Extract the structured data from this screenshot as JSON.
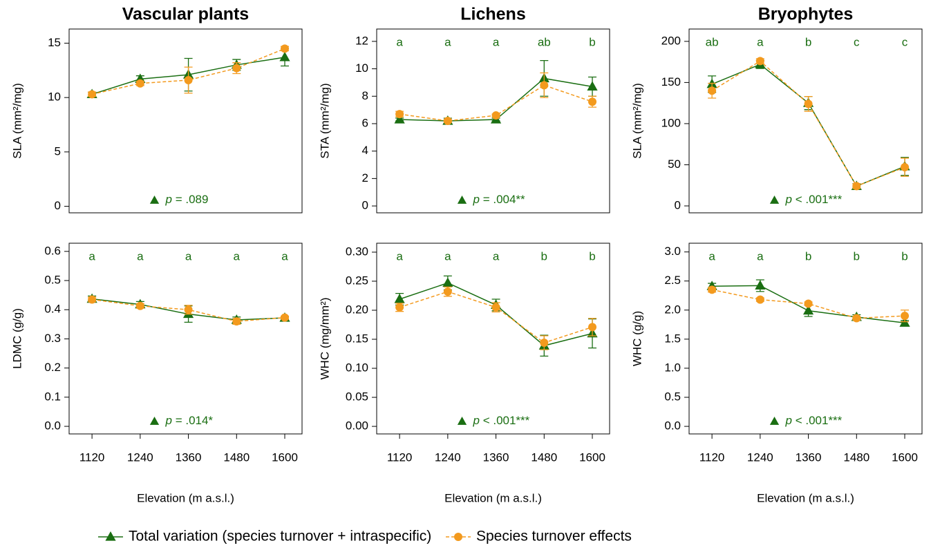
{
  "chart_data": [
    {
      "type": "line",
      "title": "Vascular plants",
      "ylabel": "SLA (mm²/mg)",
      "x": [
        1120,
        1240,
        1360,
        1480,
        1600
      ],
      "xlim": [
        1063,
        1643
      ],
      "ylim": [
        -0.6,
        16.3
      ],
      "yticks": [
        0,
        5,
        10,
        15
      ],
      "stat_label": "p",
      "stat_text": " = .089",
      "series": [
        {
          "name": "Total variation (species turnover + intraspecific)",
          "color": "#1a6e12",
          "linestyle": "solid",
          "marker": "triangle",
          "values": [
            10.3,
            11.7,
            12.1,
            13.0,
            13.7
          ],
          "errors": [
            0.2,
            0.3,
            1.5,
            0.5,
            0.8
          ]
        },
        {
          "name": "Species turnover effects",
          "color": "#f39a1e",
          "linestyle": "dashed",
          "marker": "circle",
          "values": [
            10.3,
            11.3,
            11.6,
            12.7,
            14.5
          ],
          "errors": [
            0.2,
            0.2,
            1.2,
            0.5,
            0.2
          ]
        }
      ]
    },
    {
      "type": "line",
      "title": "Lichens",
      "ylabel": "STA (mm²/mg)",
      "x": [
        1120,
        1240,
        1360,
        1480,
        1600
      ],
      "xlim": [
        1063,
        1643
      ],
      "ylim": [
        -0.5,
        12.9
      ],
      "yticks": [
        0,
        2,
        4,
        6,
        8,
        10,
        12
      ],
      "group_letters": [
        "a",
        "a",
        "a",
        "ab",
        "b"
      ],
      "stat_label": "p",
      "stat_text": " = .004**",
      "series": [
        {
          "color": "#1a6e12",
          "linestyle": "solid",
          "marker": "triangle",
          "values": [
            6.3,
            6.2,
            6.3,
            9.3,
            8.7
          ],
          "errors": [
            0.1,
            0.2,
            0.1,
            1.3,
            0.7
          ]
        },
        {
          "color": "#f39a1e",
          "linestyle": "dashed",
          "marker": "circle",
          "values": [
            6.7,
            6.2,
            6.6,
            8.8,
            7.6
          ],
          "errors": [
            0.2,
            0.1,
            0.1,
            0.9,
            0.4
          ]
        }
      ]
    },
    {
      "type": "line",
      "title": "Bryophytes",
      "ylabel": "SLA (mm²/mg)",
      "x": [
        1120,
        1240,
        1360,
        1480,
        1600
      ],
      "xlim": [
        1063,
        1643
      ],
      "ylim": [
        -8.4,
        215
      ],
      "yticks": [
        0,
        50,
        100,
        150,
        200
      ],
      "group_letters": [
        "ab",
        "a",
        "b",
        "c",
        "c"
      ],
      "stat_label": "p",
      "stat_text": " < .001***",
      "series": [
        {
          "color": "#1a6e12",
          "linestyle": "solid",
          "marker": "triangle",
          "values": [
            148,
            172,
            125,
            24,
            48
          ],
          "errors": [
            10,
            5,
            8,
            3,
            11
          ]
        },
        {
          "color": "#f39a1e",
          "linestyle": "dashed",
          "marker": "circle",
          "values": [
            140,
            176,
            124,
            24,
            47
          ],
          "errors": [
            9,
            3,
            9,
            3,
            11
          ]
        }
      ]
    },
    {
      "type": "line",
      "ylabel": "LDMC (g/g)",
      "xlabel": "Elevation (m a.s.l.)",
      "x": [
        1120,
        1240,
        1360,
        1480,
        1600
      ],
      "xlim": [
        1063,
        1643
      ],
      "xticks": [
        1120,
        1240,
        1360,
        1480,
        1600
      ],
      "ylim": [
        -0.026,
        0.628
      ],
      "yticks": [
        {
          "value": 0,
          "label": "0.0"
        },
        0.1,
        0.2,
        0.3,
        0.4,
        0.5,
        0.6
      ],
      "group_letters": [
        "a",
        "a",
        "a",
        "a",
        "a"
      ],
      "stat_label": "p",
      "stat_text": " = .014*",
      "series": [
        {
          "color": "#1a6e12",
          "linestyle": "solid",
          "marker": "triangle",
          "values": [
            0.437,
            0.418,
            0.385,
            0.365,
            0.372
          ],
          "errors": [
            0.01,
            0.01,
            0.028,
            0.01,
            0.005
          ]
        },
        {
          "color": "#f39a1e",
          "linestyle": "dashed",
          "marker": "circle",
          "values": [
            0.435,
            0.413,
            0.4,
            0.36,
            0.373
          ],
          "errors": [
            0.008,
            0.008,
            0.015,
            0.01,
            0.005
          ]
        }
      ]
    },
    {
      "type": "line",
      "ylabel": "WHC (mg/mm²)",
      "xlabel": "Elevation (m a.s.l.)",
      "x": [
        1120,
        1240,
        1360,
        1480,
        1600
      ],
      "xlim": [
        1063,
        1643
      ],
      "xticks": [
        1120,
        1240,
        1360,
        1480,
        1600
      ],
      "ylim": [
        -0.013,
        0.3154
      ],
      "yticks": [
        {
          "value": 0,
          "label": "0.00"
        },
        {
          "value": 0.05,
          "label": "0.05"
        },
        {
          "value": 0.1,
          "label": "0.10"
        },
        {
          "value": 0.15,
          "label": "0.15"
        },
        {
          "value": 0.2,
          "label": "0.20"
        },
        {
          "value": 0.25,
          "label": "0.25"
        },
        {
          "value": 0.3,
          "label": "0.30"
        }
      ],
      "group_letters": [
        "a",
        "a",
        "a",
        "b",
        "b"
      ],
      "stat_label": "p",
      "stat_text": " < .001***",
      "series": [
        {
          "color": "#1a6e12",
          "linestyle": "solid",
          "marker": "triangle",
          "values": [
            0.219,
            0.247,
            0.209,
            0.139,
            0.16
          ],
          "errors": [
            0.01,
            0.012,
            0.01,
            0.018,
            0.025
          ]
        },
        {
          "color": "#f39a1e",
          "linestyle": "dashed",
          "marker": "circle",
          "values": [
            0.205,
            0.232,
            0.205,
            0.144,
            0.171
          ],
          "errors": [
            0.007,
            0.008,
            0.008,
            0.012,
            0.015
          ]
        }
      ]
    },
    {
      "type": "line",
      "ylabel": "WHC (g/g)",
      "xlabel": "Elevation (m a.s.l.)",
      "x": [
        1120,
        1240,
        1360,
        1480,
        1600
      ],
      "xlim": [
        1063,
        1643
      ],
      "xticks": [
        1120,
        1240,
        1360,
        1480,
        1600
      ],
      "ylim": [
        -0.13,
        3.15
      ],
      "yticks": [
        {
          "value": 0,
          "label": "0.0"
        },
        0.5,
        {
          "value": 1,
          "label": "1.0"
        },
        1.5,
        {
          "value": 2,
          "label": "2.0"
        },
        2.5,
        {
          "value": 3,
          "label": "3.0"
        }
      ],
      "group_letters": [
        "a",
        "a",
        "b",
        "b",
        "b"
      ],
      "stat_label": "p",
      "stat_text": " < .001***",
      "series": [
        {
          "color": "#1a6e12",
          "linestyle": "solid",
          "marker": "triangle",
          "values": [
            2.41,
            2.42,
            1.99,
            1.88,
            1.78
          ],
          "errors": [
            0.05,
            0.1,
            0.1,
            0.04,
            0.04
          ]
        },
        {
          "color": "#f39a1e",
          "linestyle": "dashed",
          "marker": "circle",
          "values": [
            2.35,
            2.18,
            2.11,
            1.86,
            1.9
          ],
          "errors": [
            0.04,
            0.03,
            0.03,
            0.03,
            0.1
          ]
        }
      ]
    }
  ]
}
